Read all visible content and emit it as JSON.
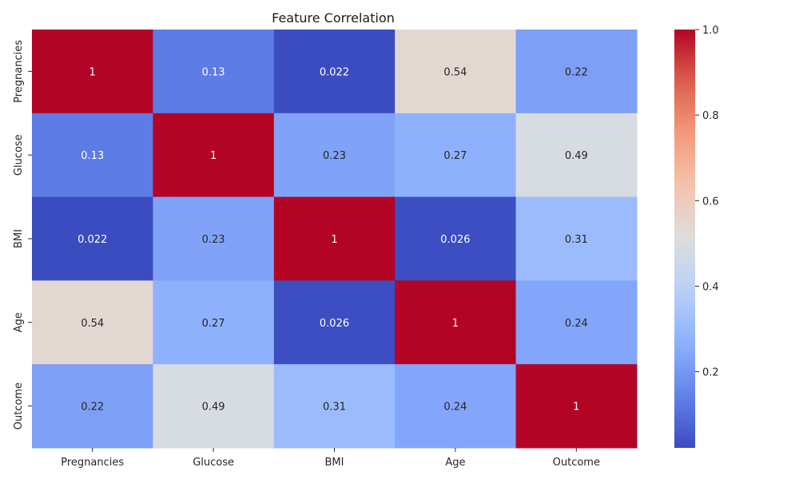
{
  "chart_data": {
    "type": "heatmap",
    "title": "Feature Correlation",
    "x_categories": [
      "Pregnancies",
      "Glucose",
      "BMI",
      "Age",
      "Outcome"
    ],
    "y_categories": [
      "Pregnancies",
      "Glucose",
      "BMI",
      "Age",
      "Outcome"
    ],
    "values": [
      [
        1,
        0.13,
        0.022,
        0.54,
        0.22
      ],
      [
        0.13,
        1,
        0.23,
        0.27,
        0.49
      ],
      [
        0.022,
        0.23,
        1,
        0.026,
        0.31
      ],
      [
        0.54,
        0.27,
        0.026,
        1,
        0.24
      ],
      [
        0.22,
        0.49,
        0.31,
        0.24,
        1
      ]
    ],
    "value_labels": [
      [
        "1",
        "0.13",
        "0.022",
        "0.54",
        "0.22"
      ],
      [
        "0.13",
        "1",
        "0.23",
        "0.27",
        "0.49"
      ],
      [
        "0.022",
        "0.23",
        "1",
        "0.026",
        "0.31"
      ],
      [
        "0.54",
        "0.27",
        "0.026",
        "1",
        "0.24"
      ],
      [
        "0.22",
        "0.49",
        "0.31",
        "0.24",
        "1"
      ]
    ],
    "colormap": "coolwarm",
    "colorbar": {
      "range": [
        0.022,
        1.0
      ],
      "ticks": [
        0.2,
        0.4,
        0.6,
        0.8,
        1.0
      ],
      "tick_labels": [
        "0.2",
        "0.4",
        "0.6",
        "0.8",
        "1.0"
      ]
    },
    "legend": "colorbar-right",
    "grid": false
  }
}
